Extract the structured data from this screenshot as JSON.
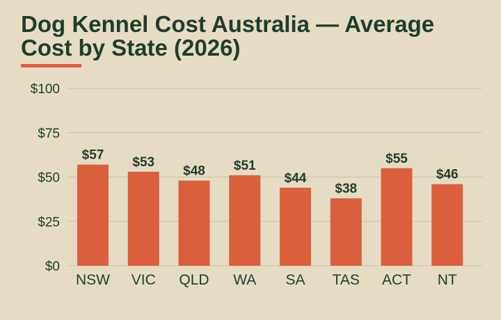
{
  "title": "Dog Kennel Cost Australia — Average Cost by State (2026)",
  "colors": {
    "background": "#e6dcc4",
    "bar": "#d95f3d",
    "text": "#1f3d2c",
    "accent": "#d95f3d",
    "grid": "#c9bfa8"
  },
  "chart_data": {
    "type": "bar",
    "title": "Dog Kennel Cost Australia — Average Cost by State (2026)",
    "xlabel": "",
    "ylabel": "",
    "categories": [
      "NSW",
      "VIC",
      "QLD",
      "WA",
      "SA",
      "TAS",
      "ACT",
      "NT"
    ],
    "values": [
      57,
      53,
      48,
      51,
      44,
      38,
      55,
      46
    ],
    "value_labels": [
      "$57",
      "$53",
      "$48",
      "$51",
      "$44",
      "$38",
      "$55",
      "$46"
    ],
    "ylim": [
      0,
      100
    ],
    "yticks": [
      0,
      25,
      50,
      75,
      100
    ],
    "ytick_labels": [
      "$0",
      "$25",
      "$50",
      "$75",
      "$100"
    ],
    "grid": true,
    "legend": "none"
  }
}
